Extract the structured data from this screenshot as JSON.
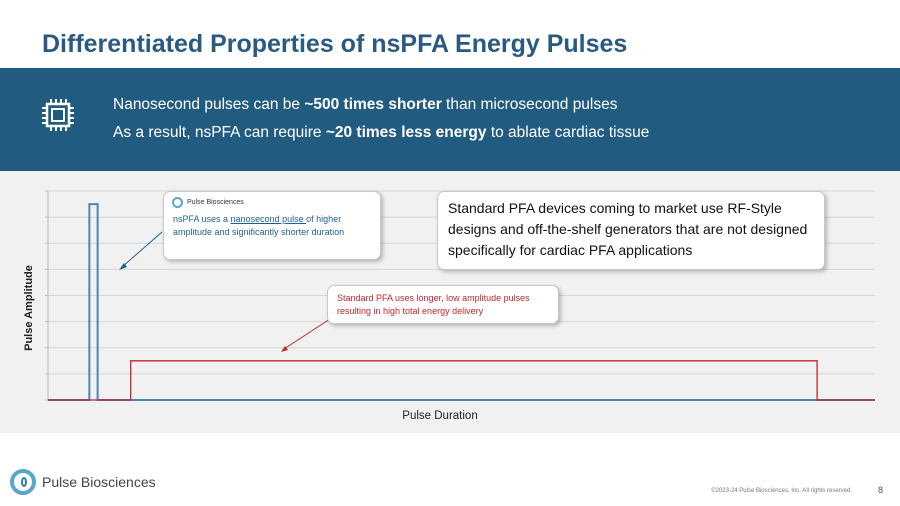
{
  "title": "Differentiated Properties of nsPFA Energy Pulses",
  "banner": {
    "icon": "chip-icon",
    "line1": {
      "pre": "Nanosecond pulses can be ",
      "bold": "~500 times shorter",
      "post": " than microsecond pulses"
    },
    "line2": {
      "pre": "As a result, nsPFA can require ",
      "bold": "~20 times less energy",
      "post": " to ablate cardiac tissue"
    }
  },
  "chart": {
    "ylabel": "Pulse Amplitude",
    "xlabel": "Pulse Duration",
    "colors": {
      "ns_pulse": "#4a86b8",
      "standard_pulse": "#c0262d",
      "grid": "#d6d6d6"
    }
  },
  "chart_data": {
    "type": "line",
    "xlabel": "Pulse Duration",
    "ylabel": "Pulse Amplitude",
    "series": [
      {
        "name": "nsPFA",
        "points": [
          [
            0,
            0
          ],
          [
            0.5,
            0
          ],
          [
            0.5,
            7.5
          ],
          [
            0.6,
            7.5
          ],
          [
            0.6,
            0
          ],
          [
            10,
            0
          ]
        ]
      },
      {
        "name": "Standard PFA",
        "points": [
          [
            0,
            0
          ],
          [
            1,
            0
          ],
          [
            1,
            1.5
          ],
          [
            9.3,
            1.5
          ],
          [
            9.3,
            0
          ],
          [
            10,
            0
          ]
        ]
      }
    ],
    "grid": true
  },
  "callouts": {
    "ns": {
      "logo_text": "Pulse Biosciences",
      "text_pre": "nsPFA uses a ",
      "text_link": "nanosecond pulse ",
      "text_post": "of higher amplitude and significantly shorter duration"
    },
    "standard": {
      "text": "Standard PFA uses longer, low amplitude pulses resulting in high total energy delivery"
    },
    "rf": {
      "text": "Standard PFA devices coming to market use RF-Style designs and off-the-shelf generators that are not designed specifically for cardiac PFA applications"
    }
  },
  "footer": {
    "logo_text": "Pulse Biosciences",
    "copyright": "©2023-24 Pulse Biosciences, Inc. All rights reserved.",
    "page_number": "8"
  }
}
